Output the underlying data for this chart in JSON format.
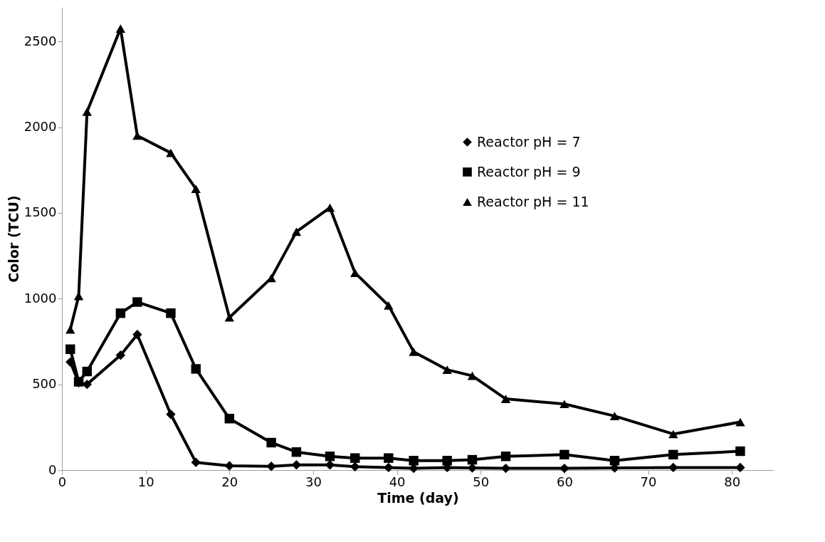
{
  "chart_data": {
    "type": "line",
    "xlabel": "Time (day)",
    "ylabel": "Color (TCU)",
    "xlim": [
      0,
      85
    ],
    "xticks": [
      0,
      10,
      20,
      30,
      40,
      50,
      60,
      70,
      80
    ],
    "ylim": [
      0,
      2700
    ],
    "yticks": [
      0,
      500,
      1000,
      1500,
      2000,
      2500
    ],
    "grid": false,
    "legend": "right",
    "line_style": "solid",
    "x": [
      1,
      2,
      3,
      7,
      9,
      13,
      16,
      20,
      25,
      28,
      32,
      35,
      39,
      42,
      46,
      49,
      53,
      60,
      66,
      73,
      81
    ],
    "series": [
      {
        "name": "Reactor pH = 7",
        "color": "#000000",
        "marker": "diamond",
        "values": [
          630,
          510,
          500,
          670,
          790,
          325,
          45,
          25,
          22,
          30,
          30,
          20,
          15,
          10,
          15,
          12,
          10,
          10,
          12,
          15,
          15
        ]
      },
      {
        "name": "Reactor pH = 9",
        "color": "#000000",
        "marker": "square",
        "values": [
          705,
          515,
          575,
          915,
          980,
          915,
          590,
          300,
          160,
          105,
          80,
          70,
          70,
          55,
          55,
          60,
          80,
          90,
          55,
          90,
          110
        ]
      },
      {
        "name": "Reactor pH = 11",
        "color": "#000000",
        "marker": "triangle",
        "values": [
          820,
          1015,
          2090,
          2575,
          1950,
          1850,
          1640,
          890,
          1120,
          1390,
          1530,
          1150,
          960,
          690,
          585,
          550,
          415,
          385,
          315,
          210,
          280
        ]
      }
    ]
  }
}
